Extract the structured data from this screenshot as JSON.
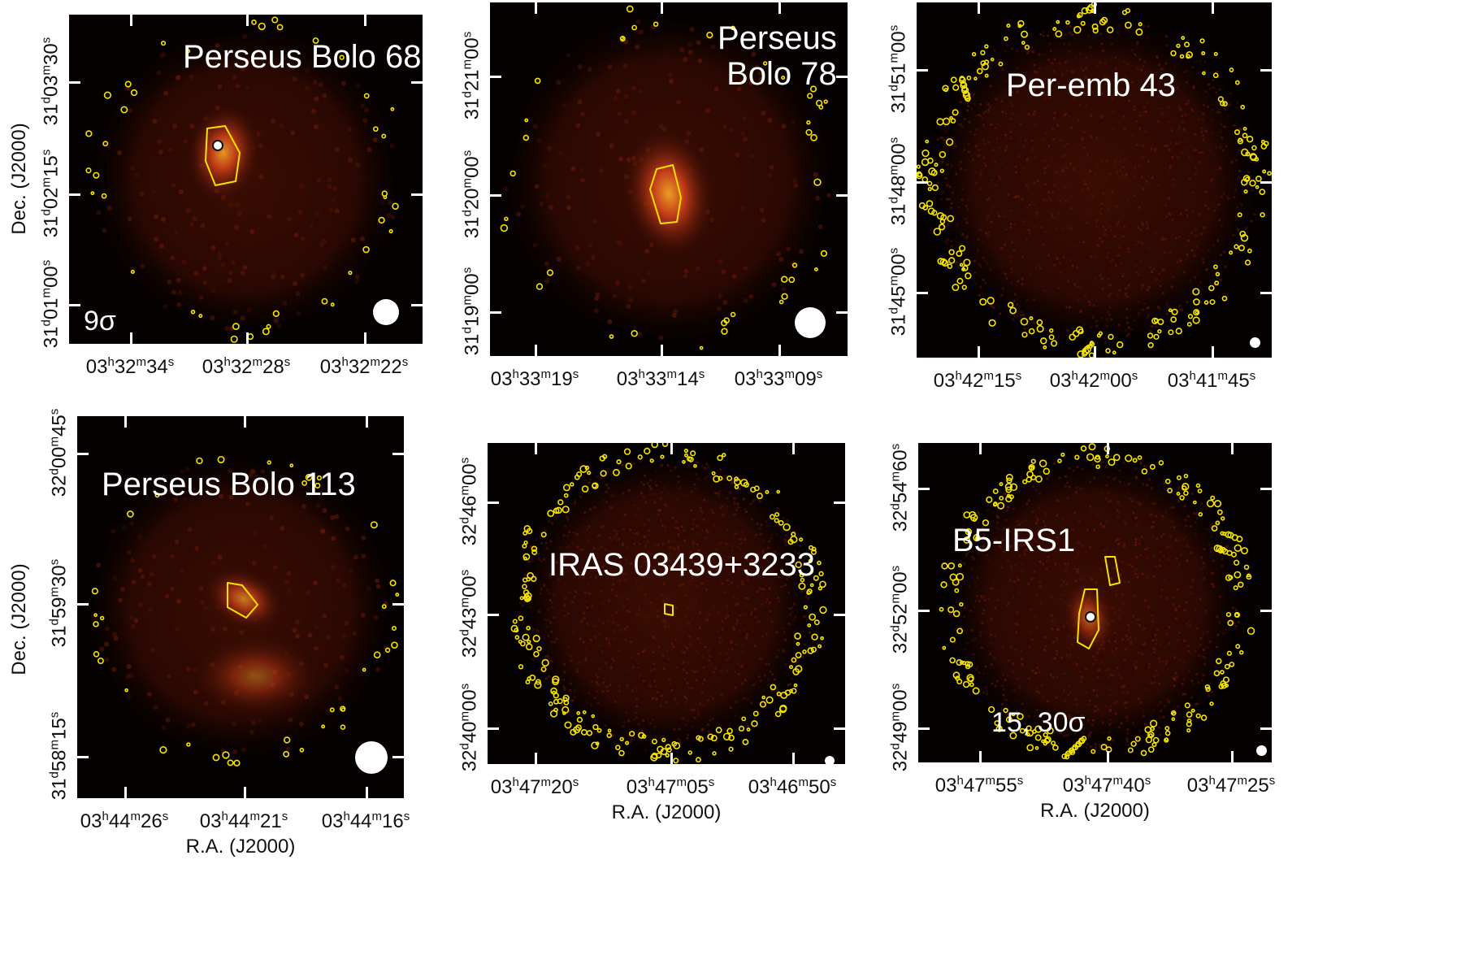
{
  "colors": {
    "background": "#050100",
    "contour": "#f5e400",
    "ink": "#111111"
  },
  "panels": [
    {
      "name": "Perseus Bolo 68",
      "title_lines": [
        "Perseus Bolo 68"
      ],
      "note": "9σ",
      "dec_ticks": [
        {
          "deg": "31",
          "min": "03",
          "sec": "30"
        },
        {
          "deg": "31",
          "min": "02",
          "sec": "15"
        },
        {
          "deg": "31",
          "min": "01",
          "sec": "00"
        }
      ],
      "ra_ticks": [
        {
          "h": "03",
          "m": "32",
          "s": "34"
        },
        {
          "h": "03",
          "m": "32",
          "s": "28"
        },
        {
          "h": "03",
          "m": "32",
          "s": "22"
        }
      ],
      "dec_label": "Dec. (J2000)",
      "ra_label": ""
    },
    {
      "name": "Perseus Bolo 78",
      "title_lines": [
        "Perseus",
        "Bolo 78"
      ],
      "note": "",
      "dec_ticks": [
        {
          "deg": "31",
          "min": "21",
          "sec": "00"
        },
        {
          "deg": "31",
          "min": "20",
          "sec": "00"
        },
        {
          "deg": "31",
          "min": "19",
          "sec": "00"
        }
      ],
      "ra_ticks": [
        {
          "h": "03",
          "m": "33",
          "s": "19"
        },
        {
          "h": "03",
          "m": "33",
          "s": "14"
        },
        {
          "h": "03",
          "m": "33",
          "s": "09"
        }
      ],
      "dec_label": "",
      "ra_label": ""
    },
    {
      "name": "Per-emb 43",
      "title_lines": [
        "Per-emb 43"
      ],
      "note": "",
      "dec_ticks": [
        {
          "deg": "31",
          "min": "51",
          "sec": "00"
        },
        {
          "deg": "31",
          "min": "48",
          "sec": "00"
        },
        {
          "deg": "31",
          "min": "45",
          "sec": "00"
        }
      ],
      "ra_ticks": [
        {
          "h": "03",
          "m": "42",
          "s": "15"
        },
        {
          "h": "03",
          "m": "42",
          "s": "00"
        },
        {
          "h": "03",
          "m": "41",
          "s": "45"
        }
      ],
      "dec_label": "",
      "ra_label": ""
    },
    {
      "name": "Perseus Bolo 113",
      "title_lines": [
        "Perseus Bolo 113"
      ],
      "note": "",
      "dec_ticks": [
        {
          "deg": "32",
          "min": "00",
          "sec": "45"
        },
        {
          "deg": "31",
          "min": "59",
          "sec": "30"
        },
        {
          "deg": "31",
          "min": "58",
          "sec": "15"
        }
      ],
      "ra_ticks": [
        {
          "h": "03",
          "m": "44",
          "s": "26"
        },
        {
          "h": "03",
          "m": "44",
          "s": "21"
        },
        {
          "h": "03",
          "m": "44",
          "s": "16"
        }
      ],
      "dec_label": "Dec. (J2000)",
      "ra_label": "R.A. (J2000)"
    },
    {
      "name": "IRAS 03439+3233",
      "title_lines": [
        "IRAS 03439+3233"
      ],
      "note": "",
      "dec_ticks": [
        {
          "deg": "32",
          "min": "46",
          "sec": "00"
        },
        {
          "deg": "32",
          "min": "43",
          "sec": "00"
        },
        {
          "deg": "32",
          "min": "40",
          "sec": "00"
        }
      ],
      "ra_ticks": [
        {
          "h": "03",
          "m": "47",
          "s": "20"
        },
        {
          "h": "03",
          "m": "47",
          "s": "05"
        },
        {
          "h": "03",
          "m": "46",
          "s": "50"
        }
      ],
      "dec_label": "",
      "ra_label": "R.A. (J2000)"
    },
    {
      "name": "B5-IRS1",
      "title_lines": [
        "B5-IRS1"
      ],
      "note": "15, 30σ",
      "dec_ticks": [
        {
          "deg": "32",
          "min": "54",
          "sec": "60"
        },
        {
          "deg": "32",
          "min": "52",
          "sec": "00"
        },
        {
          "deg": "32",
          "min": "49",
          "sec": "00"
        }
      ],
      "ra_ticks": [
        {
          "h": "03",
          "m": "47",
          "s": "55"
        },
        {
          "h": "03",
          "m": "47",
          "s": "40"
        },
        {
          "h": "03",
          "m": "47",
          "s": "25"
        }
      ],
      "dec_label": "",
      "ra_label": "R.A. (J2000)"
    }
  ]
}
